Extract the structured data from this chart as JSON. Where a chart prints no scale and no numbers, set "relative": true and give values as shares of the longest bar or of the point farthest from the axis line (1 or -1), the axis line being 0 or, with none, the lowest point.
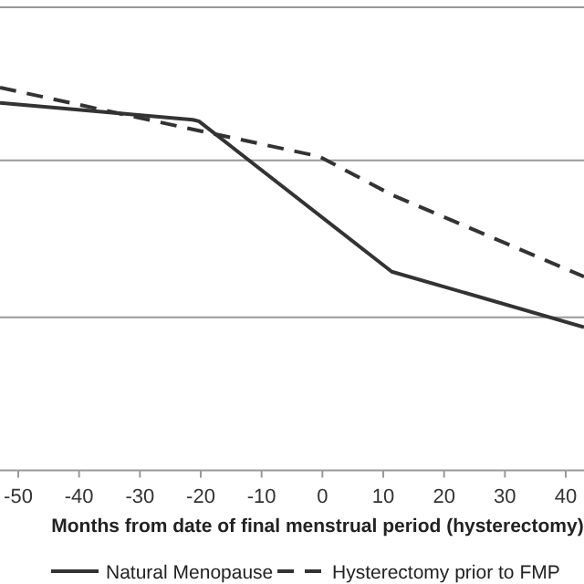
{
  "chart_data": {
    "type": "line",
    "relative": true,
    "xlabel": "Months from date of final menstrual period (hysterectomy)",
    "xlim": [
      -53,
      43
    ],
    "xticks": [
      -50,
      -40,
      -30,
      -20,
      -10,
      0,
      10,
      20,
      30,
      40
    ],
    "legend": "bottom",
    "ref_lines": [
      {
        "axis": "y",
        "value": 0.4,
        "color": "#999999"
      },
      {
        "axis": "y",
        "value": 0.81,
        "color": "#999999"
      },
      {
        "axis": "y",
        "value": 1.21,
        "color": "#999999"
      }
    ],
    "series": [
      {
        "name": "Natural Menopause",
        "color": "#333333",
        "line_style": "solid",
        "x": [
          -53,
          -21.3,
          -20.3,
          11.4,
          43
        ],
        "values": [
          0.96,
          0.916,
          0.912,
          0.519,
          0.374
        ]
      },
      {
        "name": "Hysterectomy prior to FMP",
        "color": "#333333",
        "line_style": "dashed",
        "x": [
          -53,
          -19.3,
          -0.5,
          11.4,
          43
        ],
        "values": [
          1,
          0.884,
          0.82,
          0.72,
          0.506
        ]
      }
    ]
  }
}
